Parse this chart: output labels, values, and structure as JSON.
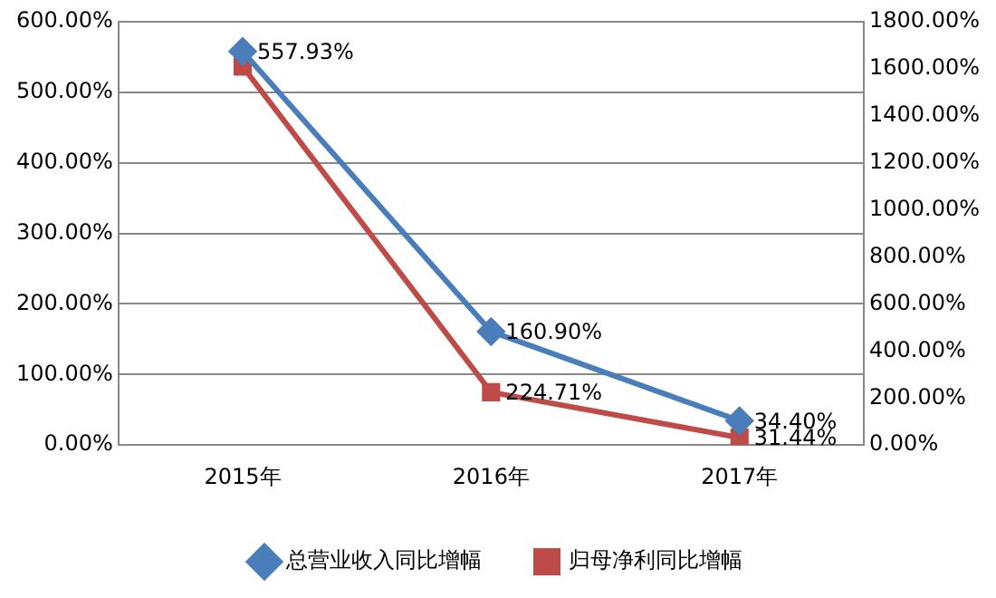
{
  "chart_data": {
    "type": "line",
    "categories": [
      "2015年",
      "2016年",
      "2017年"
    ],
    "series": [
      {
        "name": "总营业收入同比增幅",
        "color": "#4a7ebb",
        "marker": "diamond",
        "values": [
          557.93,
          160.9,
          34.4
        ],
        "value_labels": [
          "557.93%",
          "160.90%",
          "34.40%"
        ]
      },
      {
        "name": "归母净利同比增幅",
        "color": "#be4b48",
        "marker": "square",
        "axis": "y2",
        "values": [
          1610,
          224.71,
          31.44
        ],
        "value_labels": [
          null,
          "224.71%",
          "31.44%"
        ]
      }
    ],
    "ylim": [
      0,
      600
    ],
    "yticks": [
      {
        "value": 0,
        "label": "0.00%"
      },
      {
        "value": 100,
        "label": "100.00%"
      },
      {
        "value": 200,
        "label": "200.00%"
      },
      {
        "value": 300,
        "label": "300.00%"
      },
      {
        "value": 400,
        "label": "400.00%"
      },
      {
        "value": 500,
        "label": "500.00%"
      },
      {
        "value": 600,
        "label": "600.00%"
      }
    ],
    "y2lim": [
      0,
      1800
    ],
    "y2ticks": [
      {
        "value": 0,
        "label": "0.00%"
      },
      {
        "value": 200,
        "label": "200.00%"
      },
      {
        "value": 400,
        "label": "400.00%"
      },
      {
        "value": 600,
        "label": "600.00%"
      },
      {
        "value": 800,
        "label": "800.00%"
      },
      {
        "value": 1000,
        "label": "1000.00%"
      },
      {
        "value": 1200,
        "label": "1200.00%"
      },
      {
        "value": 1400,
        "label": "1400.00%"
      },
      {
        "value": 1600,
        "label": "1600.00%"
      },
      {
        "value": 1800,
        "label": "1800.00%"
      }
    ],
    "grid": "y",
    "legend": "bottom",
    "line_style": "solid"
  }
}
